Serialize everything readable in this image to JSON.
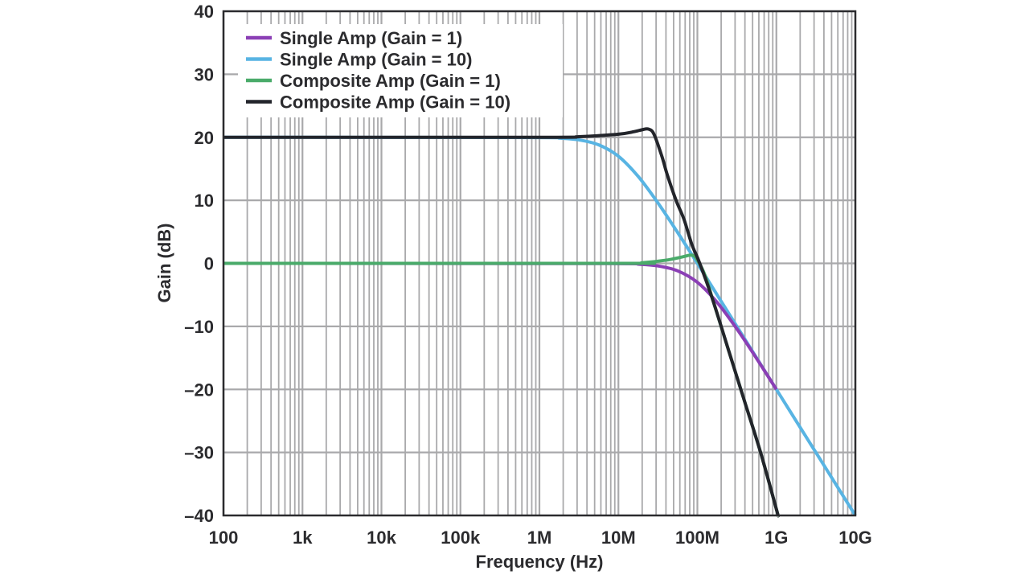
{
  "chart_data": {
    "type": "line",
    "title": "",
    "xlabel": "Frequency (Hz)",
    "ylabel": "Gain (dB)",
    "xscale": "log",
    "xlim": [
      100,
      10000000000
    ],
    "ylim": [
      -40,
      40
    ],
    "grid": true,
    "legend_position": "top-left",
    "x_ticks": [
      {
        "value": 100,
        "label": "100"
      },
      {
        "value": 1000,
        "label": "1k"
      },
      {
        "value": 10000,
        "label": "10k"
      },
      {
        "value": 100000,
        "label": "100k"
      },
      {
        "value": 1000000,
        "label": "1M"
      },
      {
        "value": 10000000,
        "label": "10M"
      },
      {
        "value": 100000000,
        "label": "100M"
      },
      {
        "value": 1000000000,
        "label": "1G"
      },
      {
        "value": 10000000000,
        "label": "10G"
      }
    ],
    "y_ticks": [
      {
        "value": 40,
        "label": "40"
      },
      {
        "value": 30,
        "label": "30"
      },
      {
        "value": 20,
        "label": "20"
      },
      {
        "value": 10,
        "label": "10"
      },
      {
        "value": 0,
        "label": "0"
      },
      {
        "value": -10,
        "label": "–10"
      },
      {
        "value": -20,
        "label": "–20"
      },
      {
        "value": -30,
        "label": "–30"
      },
      {
        "value": -40,
        "label": "–40"
      }
    ],
    "series": [
      {
        "name": "Single Amp (Gain = 1)",
        "color": "#8b3fb5",
        "log10_freq": [
          2,
          7,
          7.25,
          7.5,
          7.75,
          8,
          8.25,
          8.5,
          8.75,
          9
        ],
        "gain_db": [
          0,
          -0.04,
          -0.13,
          -0.41,
          -1.19,
          -3.01,
          -6.2,
          -10.4,
          -15.1,
          -20.0
        ]
      },
      {
        "name": "Single Amp (Gain = 10)",
        "color": "#58b4e3",
        "log10_freq": [
          2,
          6,
          6.25,
          6.5,
          6.75,
          7,
          7.25,
          7.5,
          7.75,
          8,
          8.25,
          8.5,
          9,
          10
        ],
        "gain_db": [
          20,
          19.96,
          19.87,
          19.59,
          18.8,
          17.0,
          13.8,
          9.6,
          4.9,
          0,
          -5.0,
          -10.0,
          -20.0,
          -40.0
        ]
      },
      {
        "name": "Composite Amp (Gain = 1)",
        "color": "#4aab6a",
        "log10_freq": [
          2,
          7,
          7.3,
          7.6,
          7.8,
          7.93,
          8.0,
          8.1,
          8.2,
          8.4,
          8.6,
          8.8,
          9.0,
          9.02
        ],
        "gain_db": [
          0,
          0,
          0.1,
          0.5,
          1.0,
          1.3,
          0.5,
          -2,
          -6,
          -14,
          -22,
          -30,
          -39,
          -40
        ]
      },
      {
        "name": "Composite Amp (Gain = 10)",
        "color": "#23252b",
        "log10_freq": [
          2,
          6,
          6.5,
          7,
          7.2,
          7.3,
          7.38,
          7.45,
          7.55,
          7.62,
          7.73,
          7.83,
          7.93,
          8.03,
          8.2,
          8.4,
          8.6,
          8.8,
          9.0,
          9.02
        ],
        "gain_db": [
          20,
          20,
          20.1,
          20.5,
          20.9,
          21.2,
          21.3,
          20.5,
          17,
          14,
          10,
          7,
          3,
          0,
          -6,
          -14,
          -22,
          -30,
          -39,
          -40
        ]
      }
    ]
  }
}
